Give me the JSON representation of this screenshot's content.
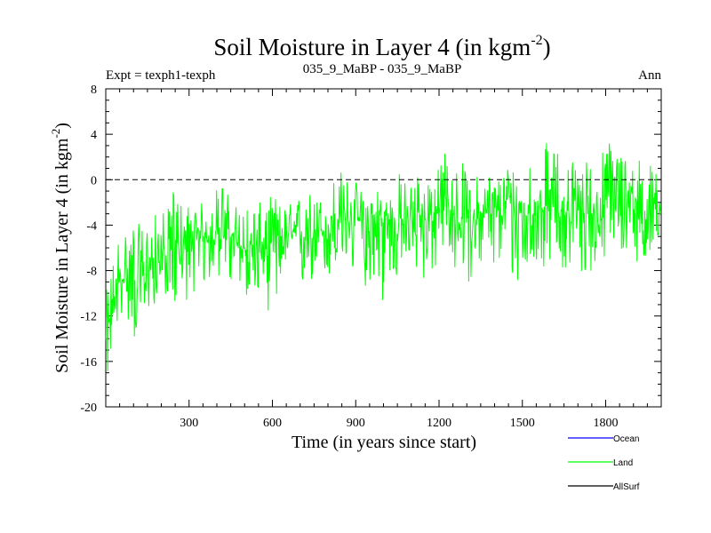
{
  "chart_data": {
    "type": "line",
    "title": "Soil Moisture in Layer 4 (in kgm",
    "title_sup": "-2",
    "title_close": ")",
    "subtitle_left": "Expt = texph1-texph",
    "subtitle_center": "035_9_MaBP - 035_9_MaBP",
    "subtitle_right": "Ann",
    "xlabel": "Time (in years since start)",
    "ylabel": "Soil Moisture in Layer 4 (in kgm",
    "ylabel_sup": "-2",
    "ylabel_close": ")",
    "xlim": [
      0,
      2000
    ],
    "ylim": [
      -20,
      8
    ],
    "x_ticks": [
      "300",
      "600",
      "900",
      "1200",
      "1500",
      "1800"
    ],
    "x_tick_values": [
      300,
      600,
      900,
      1200,
      1500,
      1800
    ],
    "y_ticks": [
      "8",
      "4",
      "0",
      "-4",
      "-8",
      "-12",
      "-16",
      "-20"
    ],
    "y_tick_values": [
      8,
      4,
      0,
      -4,
      -8,
      -12,
      -16,
      -20
    ],
    "zero_line": 0,
    "series": [
      {
        "name": "Ocean",
        "color": "#0000ff",
        "values": []
      },
      {
        "name": "Land",
        "color": "#00ff00",
        "note": "noisy annual series; values listed as coarse 25-year window means with local min/max",
        "x": [
          0,
          25,
          50,
          75,
          100,
          125,
          150,
          175,
          200,
          225,
          250,
          275,
          300,
          325,
          350,
          375,
          400,
          425,
          450,
          475,
          500,
          525,
          550,
          575,
          600,
          625,
          650,
          675,
          700,
          725,
          750,
          775,
          800,
          825,
          850,
          875,
          900,
          925,
          950,
          975,
          1000,
          1025,
          1050,
          1075,
          1100,
          1125,
          1150,
          1175,
          1200,
          1225,
          1250,
          1275,
          1300,
          1325,
          1350,
          1375,
          1400,
          1425,
          1450,
          1475,
          1500,
          1525,
          1550,
          1575,
          1600,
          1625,
          1650,
          1675,
          1700,
          1725,
          1750,
          1775,
          1800,
          1825,
          1850,
          1875,
          1900,
          1925,
          1950,
          1975,
          2000
        ],
        "mean": [
          -15,
          -11,
          -9,
          -8.5,
          -8,
          -9,
          -8,
          -7.5,
          -7,
          -6.5,
          -6,
          -6,
          -6,
          -5.5,
          -5,
          -5,
          -4.5,
          -3.5,
          -5,
          -6,
          -6,
          -6,
          -6.5,
          -6,
          -5.5,
          -5,
          -5,
          -5,
          -5,
          -4.5,
          -4.5,
          -4.5,
          -4.5,
          -4,
          -3.5,
          -3.5,
          -3.5,
          -4,
          -4.5,
          -4,
          -4,
          -4,
          -3.5,
          -3.5,
          -3.5,
          -3.5,
          -3.5,
          -3,
          -3,
          -2,
          -3,
          -3.5,
          -3.5,
          -3.5,
          -3,
          -3,
          -3,
          -2.5,
          -2.5,
          -3,
          -3,
          -3,
          -3,
          -2.5,
          -2,
          -2.5,
          -3,
          -2.5,
          -2.5,
          -3,
          -3,
          -3,
          -2.5,
          -2,
          -2,
          -2,
          -2,
          -2.5,
          -3,
          -3,
          -3
        ],
        "min": [
          -18.5,
          -15,
          -12,
          -12,
          -14.5,
          -14,
          -12,
          -11,
          -11,
          -10,
          -11.5,
          -10,
          -11,
          -9.5,
          -10,
          -9,
          -9,
          -8,
          -10,
          -11,
          -10,
          -11,
          -10,
          -11,
          -12.5,
          -10,
          -9,
          -9,
          -10,
          -10,
          -9,
          -11,
          -9,
          -9,
          -8,
          -8,
          -9,
          -10,
          -9,
          -9,
          -11.5,
          -9,
          -9,
          -8,
          -8,
          -9,
          -9,
          -8.5,
          -8,
          -7,
          -8,
          -8.5,
          -9,
          -9,
          -8,
          -8,
          -8,
          -8,
          -8,
          -10,
          -9,
          -8,
          -8,
          -8,
          -7,
          -8,
          -8,
          -8.5,
          -8,
          -9,
          -8,
          -8,
          -7,
          -7,
          -7,
          -7,
          -7.5,
          -7,
          -8,
          -7,
          -7
        ],
        "max": [
          -10,
          -7,
          -4,
          -4,
          -3.5,
          -4,
          -3.5,
          -3,
          -2.5,
          -2.5,
          0,
          -2,
          -2,
          -2,
          -2,
          -1.5,
          -0.5,
          0,
          -2,
          -2,
          -2,
          -2,
          -2,
          -2,
          -1,
          -2,
          -2,
          -2,
          -1,
          -1,
          -1,
          -1.5,
          0,
          0.5,
          1,
          0,
          0,
          -1,
          0,
          0,
          -1,
          -1,
          1,
          0,
          0,
          1,
          0,
          1.5,
          1,
          3.3,
          1,
          2,
          1,
          0,
          1,
          1,
          0.5,
          1,
          1.5,
          2.5,
          2,
          2,
          2,
          4.5,
          2,
          3,
          2,
          2,
          2,
          2,
          2,
          2,
          3.5,
          4,
          3,
          3,
          2.5,
          2,
          1.5,
          1.5,
          1
        ]
      },
      {
        "name": "AllSurf",
        "color": "#000000",
        "values": []
      }
    ],
    "legend": [
      "Ocean",
      "Land",
      "AllSurf"
    ],
    "legend_position": "bottom-right"
  }
}
